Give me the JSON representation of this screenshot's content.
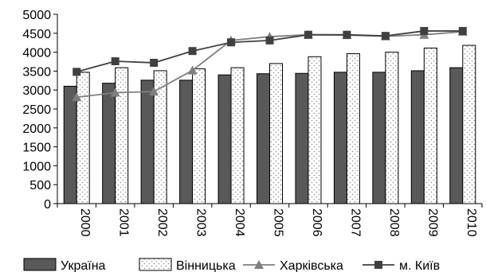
{
  "chart_data": {
    "type": "bar",
    "categories": [
      "2000",
      "2001",
      "2002",
      "2003",
      "2004",
      "2005",
      "2006",
      "2007",
      "2008",
      "2009",
      "2010"
    ],
    "ylim": [
      0,
      5000
    ],
    "yticks": [
      0,
      500,
      1000,
      1500,
      2000,
      2500,
      3000,
      3500,
      4000,
      4500,
      5000
    ],
    "grid": false,
    "legend_position": "bottom",
    "series": [
      {
        "name": "Україна",
        "kind": "bar",
        "color": "#595959",
        "values": [
          3100,
          3180,
          3260,
          3260,
          3400,
          3430,
          3440,
          3470,
          3470,
          3510,
          3590
        ]
      },
      {
        "name": "Вінницька",
        "kind": "bar",
        "color": "#ffffff",
        "pattern": "dots",
        "values": [
          3470,
          3590,
          3510,
          3560,
          3590,
          3700,
          3880,
          3960,
          4000,
          4110,
          4180
        ]
      },
      {
        "name": "Харківська",
        "kind": "line",
        "marker": "triangle",
        "color": "#7f7f7f",
        "values": [
          2810,
          2930,
          2960,
          3520,
          4310,
          4410,
          4460,
          4450,
          4420,
          4460,
          4540
        ]
      },
      {
        "name": "м. Київ",
        "kind": "line",
        "marker": "square",
        "color": "#404040",
        "values": [
          3480,
          3760,
          3720,
          4030,
          4260,
          4310,
          4460,
          4460,
          4430,
          4560,
          4560
        ]
      }
    ]
  }
}
